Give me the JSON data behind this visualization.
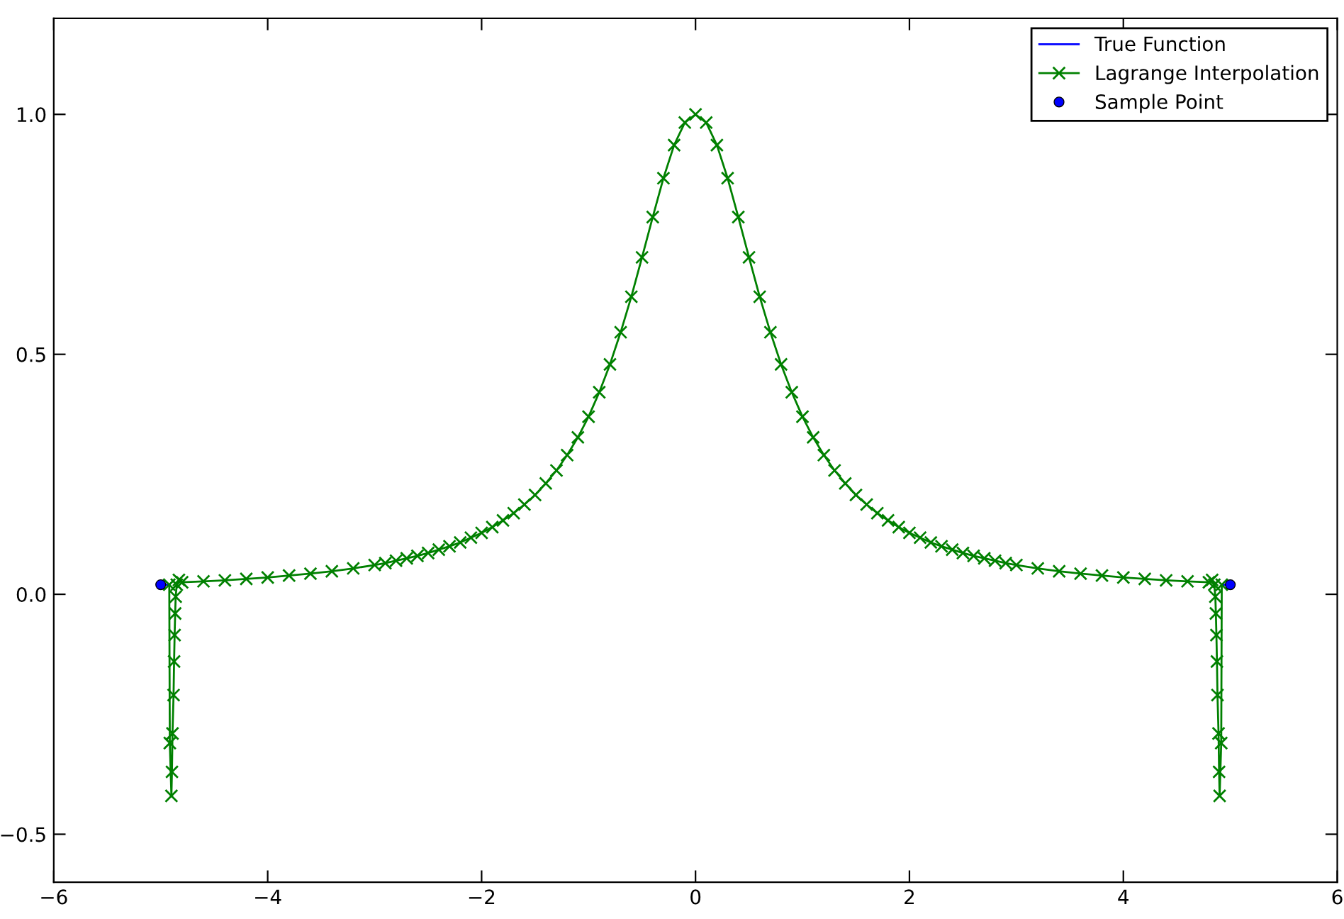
{
  "chart_data": {
    "type": "line",
    "xlim": [
      -6,
      6
    ],
    "ylim": [
      -0.6,
      1.2
    ],
    "xticks": [
      {
        "value": -6,
        "label": "−6"
      },
      {
        "value": -4,
        "label": "−4"
      },
      {
        "value": -2,
        "label": "−2"
      },
      0,
      2,
      4,
      6
    ],
    "yticks": [
      {
        "value": -0.5,
        "label": "−0.5"
      },
      {
        "value": 0.0,
        "label": "0.0"
      },
      {
        "value": 0.5,
        "label": "0.5"
      },
      {
        "value": 1.0,
        "label": "1.0"
      }
    ],
    "grid": false,
    "legend": "top right",
    "line_style": "solid",
    "series": [
      {
        "name": "True Function",
        "marker": "none",
        "color": "#0000ff",
        "x": [
          -5.0,
          -4.92,
          0,
          4.92,
          5.0
        ],
        "values": [
          0.02,
          0.02,
          null,
          0.02,
          0.02
        ]
      },
      {
        "name": "Lagrange Interpolation",
        "marker": "cross",
        "color": "#008000",
        "x": [
          -4.92,
          -4.915,
          -4.9,
          -4.895,
          -4.89,
          -4.88,
          -4.875,
          -4.87,
          -4.865,
          -4.86,
          -4.85,
          -4.83,
          -4.8,
          -4.6,
          -4.4,
          -4.2,
          -4.0,
          -3.8,
          -3.6,
          -3.4,
          -3.2,
          -3.0,
          -2.9,
          -2.8,
          -2.7,
          -2.6,
          -2.5,
          -2.4,
          -2.3,
          -2.2,
          -2.1,
          -2.0,
          -1.9,
          -1.8,
          -1.7,
          -1.6,
          -1.5,
          -1.4,
          -1.3,
          -1.2,
          -1.1,
          -1.0,
          -0.9,
          -0.8,
          -0.7,
          -0.6,
          -0.5,
          -0.4,
          -0.3,
          -0.2,
          -0.1,
          0,
          0.1,
          0.2,
          0.3,
          0.4,
          0.5,
          0.6,
          0.7,
          0.8,
          0.9,
          1.0,
          1.1,
          1.2,
          1.3,
          1.4,
          1.5,
          1.6,
          1.7,
          1.8,
          1.9,
          2.0,
          2.1,
          2.2,
          2.3,
          2.4,
          2.5,
          2.6,
          2.7,
          2.8,
          2.9,
          3.0,
          3.2,
          3.4,
          3.6,
          3.8,
          4.0,
          4.2,
          4.4,
          4.6,
          4.8,
          4.83,
          4.85,
          4.86,
          4.865,
          4.87,
          4.875,
          4.88,
          4.89,
          4.895,
          4.9,
          4.915,
          4.92
        ],
        "values": [
          0.02,
          -0.31,
          -0.42,
          -0.37,
          -0.29,
          -0.21,
          -0.14,
          -0.085,
          -0.04,
          -0.005,
          0.02,
          0.03,
          0.025,
          0.027,
          0.029,
          0.032,
          0.035,
          0.039,
          0.043,
          0.048,
          0.054,
          0.061,
          0.065,
          0.07,
          0.075,
          0.08,
          0.086,
          0.093,
          0.1,
          0.108,
          0.118,
          0.128,
          0.14,
          0.154,
          0.169,
          0.187,
          0.207,
          0.231,
          0.258,
          0.29,
          0.327,
          0.37,
          0.421,
          0.479,
          0.546,
          0.62,
          0.702,
          0.786,
          0.867,
          0.936,
          0.983,
          1.0,
          0.983,
          0.936,
          0.867,
          0.786,
          0.702,
          0.62,
          0.546,
          0.479,
          0.421,
          0.37,
          0.327,
          0.29,
          0.258,
          0.231,
          0.207,
          0.187,
          0.169,
          0.154,
          0.14,
          0.128,
          0.118,
          0.108,
          0.1,
          0.093,
          0.086,
          0.08,
          0.075,
          0.07,
          0.065,
          0.061,
          0.054,
          0.048,
          0.043,
          0.039,
          0.035,
          0.032,
          0.029,
          0.027,
          0.025,
          0.03,
          0.02,
          -0.005,
          -0.04,
          -0.085,
          -0.14,
          -0.21,
          -0.29,
          -0.37,
          -0.42,
          -0.31,
          0.02
        ]
      },
      {
        "name": "Sample Point",
        "type": "scatter",
        "marker": "circle",
        "color": "#0000ff",
        "x": [
          -5.0,
          5.0
        ],
        "values": [
          0.02,
          0.02
        ]
      }
    ]
  }
}
